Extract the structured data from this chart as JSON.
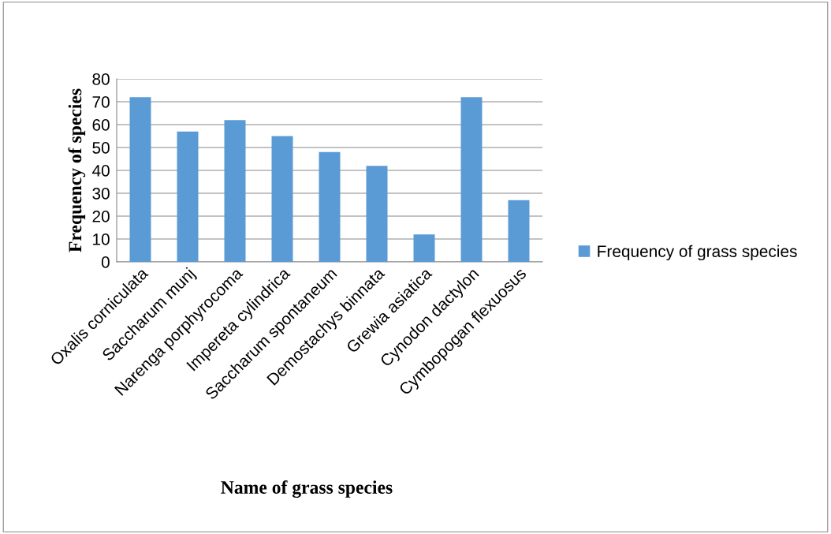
{
  "chart_data": {
    "type": "bar",
    "xlabel": "Name of grass species",
    "ylabel": "Frequency of species",
    "categories": [
      "Oxalis corniculata",
      "Saccharum munj",
      "Narenga porphyrocoma",
      "Impereta cylindrica",
      "Saccharum spontaneum",
      "Demostachys binnata",
      "Grewia asiatica",
      "Cynodon dactylon",
      "Cymbopogan flexuosus"
    ],
    "series": [
      {
        "name": "Frequency of grass species",
        "color": "#5b9bd5",
        "values": [
          72,
          57,
          62,
          55,
          48,
          42,
          12,
          72,
          27
        ]
      }
    ],
    "ylim": [
      0,
      80
    ],
    "yticks": [
      0,
      10,
      20,
      30,
      40,
      50,
      60,
      70,
      80
    ],
    "grid": "y",
    "legend": "right"
  }
}
